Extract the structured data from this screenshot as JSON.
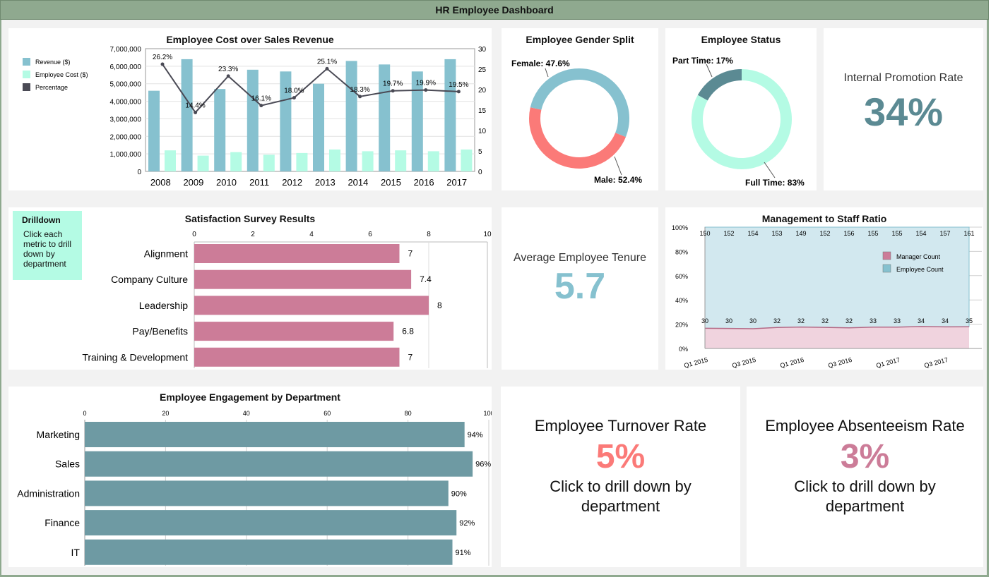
{
  "app": {
    "title": "HR Employee Dashboard"
  },
  "colors": {
    "teal": "#86c1cf",
    "mint": "#b4fbe4",
    "dark": "#4a4a55",
    "coral": "#fb7a78",
    "pink": "#cc7c98",
    "slate": "#6e9aa3",
    "status_dark": "#5b8a93"
  },
  "cost_chart": {
    "title": "Employee Cost over Sales Revenue",
    "legend": [
      {
        "label": "Revenue ($)",
        "icon": "revenue-swatch"
      },
      {
        "label": "Employee Cost ($)",
        "icon": "cost-swatch"
      },
      {
        "label": "Percentage",
        "icon": "percentage-swatch"
      }
    ],
    "y_ticks": [
      "7,000,000",
      "6,000,000",
      "5,000,000",
      "4,000,000",
      "3,000,000",
      "2,000,000",
      "1,000,000",
      "0"
    ],
    "y2_ticks": [
      "30",
      "25",
      "20",
      "15",
      "10",
      "5",
      "0"
    ]
  },
  "gender": {
    "title": "Employee Gender Split",
    "female_label": "Female: 47.6%",
    "male_label": "Male: 52.4%"
  },
  "status": {
    "title": "Employee Status",
    "part_label": "Part Time: 17%",
    "full_label": "Full Time: 83%"
  },
  "promotion": {
    "label": "Internal Promotion Rate",
    "value": "34%"
  },
  "drilldown": {
    "title": "Drilldown",
    "text": "Click each metric to drill down by department"
  },
  "survey_chart": {
    "title": "Satisfaction Survey Results",
    "ticks": [
      "0",
      "2",
      "4",
      "6",
      "8",
      "10"
    ]
  },
  "tenure": {
    "label": "Average Employee Tenure",
    "value": "5.7"
  },
  "ratio_chart": {
    "title": "Management to Staff Ratio",
    "y_ticks": [
      "100%",
      "80%",
      "60%",
      "40%",
      "20%",
      "0%"
    ],
    "x_labels": [
      "Q1 2015",
      "Q3 2015",
      "Q1 2016",
      "Q3 2016",
      "Q1 2017",
      "Q3 2017"
    ],
    "legend": [
      {
        "label": "Manager Count"
      },
      {
        "label": "Employee Count"
      }
    ]
  },
  "engagement_chart": {
    "title": "Employee Engagement by Department",
    "ticks": [
      "0",
      "20",
      "40",
      "60",
      "80",
      "100"
    ]
  },
  "turnover": {
    "label": "Employee Turnover Rate",
    "value": "5%",
    "drill": "Click to drill down by department"
  },
  "absenteeism": {
    "label": "Employee Absenteeism Rate",
    "value": "3%",
    "drill": "Click to drill down by department"
  },
  "chart_data": [
    {
      "type": "bar",
      "title": "Employee Cost over Sales Revenue",
      "categories": [
        "2008",
        "2009",
        "2010",
        "2011",
        "2012",
        "2013",
        "2014",
        "2015",
        "2016",
        "2017"
      ],
      "series": [
        {
          "name": "Revenue ($)",
          "values": [
            4600000,
            6400000,
            4700000,
            5800000,
            5700000,
            5000000,
            6300000,
            6100000,
            5700000,
            6400000
          ]
        },
        {
          "name": "Employee Cost ($)",
          "values": [
            1200000,
            900000,
            1100000,
            950000,
            1050000,
            1250000,
            1150000,
            1200000,
            1150000,
            1250000
          ]
        },
        {
          "name": "Percentage",
          "values": [
            26.2,
            14.4,
            23.3,
            16.1,
            18.0,
            25.1,
            18.3,
            19.7,
            19.9,
            19.5
          ],
          "labels": [
            "26.2%",
            "14.4%",
            "23.3%",
            "16.1%",
            "18.0%",
            "25.1%",
            "18.3%",
            "19.7%",
            "19.9%",
            "19.5%"
          ]
        }
      ],
      "ylim": [
        0,
        7000000
      ],
      "y2lim": [
        0,
        30
      ]
    },
    {
      "type": "pie",
      "title": "Employee Gender Split",
      "categories": [
        "Female",
        "Male"
      ],
      "values": [
        47.6,
        52.4
      ]
    },
    {
      "type": "pie",
      "title": "Employee Status",
      "categories": [
        "Part Time",
        "Full Time"
      ],
      "values": [
        17,
        83
      ]
    },
    {
      "type": "bar",
      "title": "Satisfaction Survey Results",
      "categories": [
        "Alignment",
        "Company Culture",
        "Leadership",
        "Pay/Benefits",
        "Training & Development"
      ],
      "values": [
        7,
        7.4,
        8,
        6.8,
        7
      ],
      "labels": [
        "7",
        "7.4",
        "8",
        "6.8",
        "7"
      ],
      "xlim": [
        0,
        10
      ]
    },
    {
      "type": "area",
      "title": "Management to Staff Ratio",
      "series": [
        {
          "name": "Manager Count",
          "values": [
            30,
            30,
            30,
            32,
            32,
            32,
            32,
            33,
            33,
            34,
            34,
            35
          ]
        },
        {
          "name": "Employee Count",
          "values": [
            150,
            152,
            154,
            153,
            149,
            152,
            156,
            155,
            155,
            154,
            157,
            161
          ]
        }
      ],
      "ylim": [
        0,
        100
      ]
    },
    {
      "type": "bar",
      "title": "Employee Engagement by Department",
      "categories": [
        "Marketing",
        "Sales",
        "Administration",
        "Finance",
        "IT"
      ],
      "values": [
        94,
        96,
        90,
        92,
        91
      ],
      "labels": [
        "94%",
        "96%",
        "90%",
        "92%",
        "91%"
      ],
      "xlim": [
        0,
        100
      ]
    }
  ]
}
